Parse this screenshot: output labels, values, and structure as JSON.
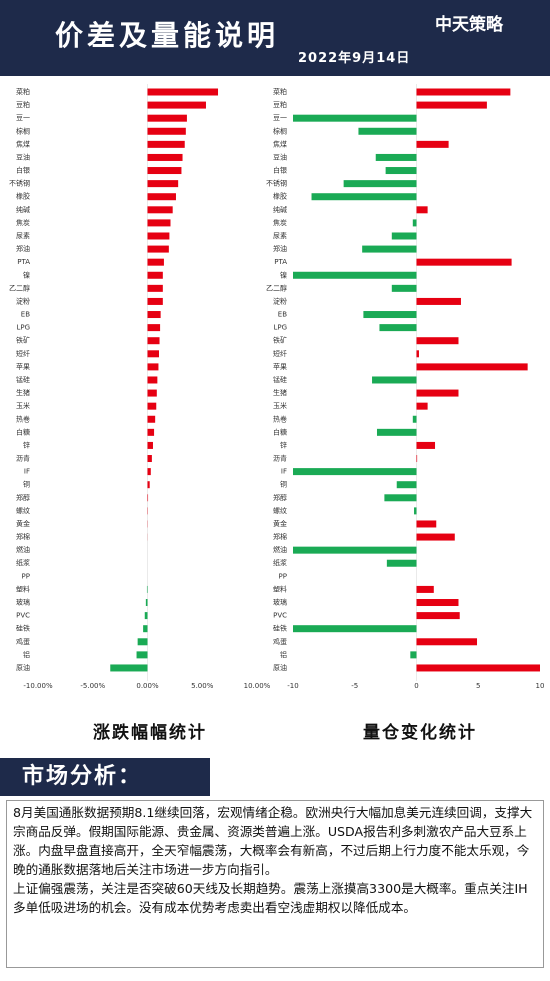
{
  "header": {
    "title": "价差及量能说明",
    "date": "2022年9月14日",
    "logo": "中天策略"
  },
  "chart_data": [
    {
      "type": "bar",
      "orientation": "horizontal",
      "title": "涨跌幅幅统计",
      "color": "#e60012",
      "negative_color": "#1aaa55",
      "categories": [
        "菜粕",
        "豆粕",
        "豆一",
        "棕榈",
        "焦煤",
        "豆油",
        "白银",
        "不锈钢",
        "橡胶",
        "纯碱",
        "焦炭",
        "尿素",
        "郑油",
        "PTA",
        "镍",
        "乙二醇",
        "淀粉",
        "EB",
        "LPG",
        "铁矿",
        "短纤",
        "苹果",
        "锰硅",
        "生猪",
        "玉米",
        "热卷",
        "白糖",
        "锌",
        "沥青",
        "IF",
        "铜",
        "郑醇",
        "螺纹",
        "黄金",
        "郑棉",
        "燃油",
        "纸浆",
        "PP",
        "塑料",
        "玻璃",
        "PVC",
        "硅铁",
        "鸡蛋",
        "铝",
        "原油"
      ],
      "values": [
        6.44,
        5.34,
        3.6,
        3.5,
        3.4,
        3.2,
        3.1,
        2.8,
        2.6,
        2.3,
        2.1,
        2.0,
        1.95,
        1.5,
        1.4,
        1.4,
        1.4,
        1.2,
        1.15,
        1.1,
        1.05,
        1.0,
        0.9,
        0.85,
        0.8,
        0.7,
        0.6,
        0.5,
        0.4,
        0.3,
        0.2,
        0.05,
        0.03,
        0.02,
        0.01,
        0,
        0,
        0,
        -0.05,
        -0.15,
        -0.25,
        -0.4,
        -0.9,
        -1.0,
        -3.4
      ],
      "xlim": [
        -10,
        10
      ],
      "xticks": [
        {
          "value": -10,
          "label": "-10.00%"
        },
        {
          "value": -5,
          "label": "-5.00%"
        },
        {
          "value": 0,
          "label": "0.00%"
        },
        {
          "value": 5,
          "label": "5.00%"
        },
        {
          "value": 10,
          "label": "10.00%"
        }
      ]
    },
    {
      "type": "bar",
      "orientation": "horizontal",
      "title": "量仓变化统计",
      "color": "#e60012",
      "negative_color": "#1aaa55",
      "categories": [
        "菜粕",
        "豆粕",
        "豆一",
        "棕榈",
        "焦煤",
        "豆油",
        "白银",
        "不锈钢",
        "橡胶",
        "纯碱",
        "焦炭",
        "尿素",
        "郑油",
        "PTA",
        "镍",
        "乙二醇",
        "淀粉",
        "EB",
        "LPG",
        "铁矿",
        "短纤",
        "苹果",
        "锰硅",
        "生猪",
        "玉米",
        "热卷",
        "白糖",
        "锌",
        "沥青",
        "IF",
        "铜",
        "郑醇",
        "螺纹",
        "黄金",
        "郑棉",
        "燃油",
        "纸浆",
        "PP",
        "塑料",
        "玻璃",
        "PVC",
        "硅铁",
        "鸡蛋",
        "铝",
        "原油"
      ],
      "values": [
        7.6,
        5.7,
        -10,
        -4.7,
        2.6,
        -3.3,
        -2.5,
        -5.9,
        -8.5,
        0.9,
        -0.3,
        -2.0,
        -4.4,
        7.7,
        -10,
        -2.0,
        3.6,
        -4.3,
        -3.0,
        3.4,
        0.2,
        9.0,
        -3.6,
        3.4,
        0.9,
        -0.3,
        -3.2,
        1.5,
        0.05,
        -10,
        -1.6,
        -2.6,
        -0.2,
        1.6,
        3.1,
        -10,
        -2.4,
        0,
        1.4,
        3.4,
        3.5,
        -10,
        4.9,
        -0.5,
        10
      ],
      "xlim": [
        -10,
        10
      ],
      "xticks": [
        -10,
        -5,
        0,
        5,
        10
      ]
    }
  ],
  "analysis": {
    "title": "市场分析：",
    "paragraphs": [
      "8月美国通胀数据预期8.1继续回落，宏观情绪企稳。欧洲央行大幅加息美元连续回调，支撑大宗商品反弹。假期国际能源、贵金属、资源类普遍上涨。USDA报告利多刺激农产品大豆系上涨。内盘早盘直接高开，全天窄幅震荡，大概率会有新高，不过后期上行力度不能太乐观，今晚的通胀数据落地后关注市场进一步方向指引。",
      "上证偏强震荡，关注是否突破60天线及长期趋势。震荡上涨摸高3300是大概率。重点关注IH多单低吸进场的机会。没有成本优势考虑卖出看空浅虚期权以降低成本。"
    ]
  }
}
